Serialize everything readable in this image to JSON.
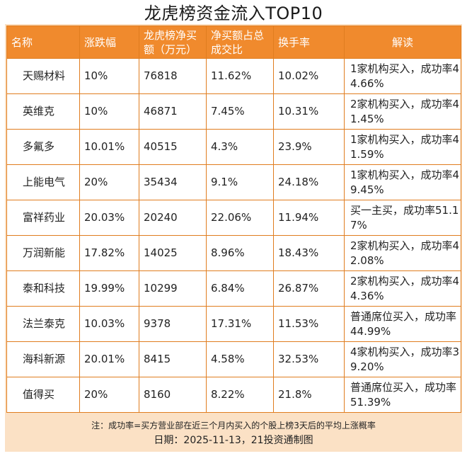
{
  "title": "龙虎榜资金流入TOP10",
  "columns": [
    "名称",
    "涨跌幅",
    "龙虎榜净买额（万元）",
    "净买额占总成交比",
    "换手率",
    "解读"
  ],
  "rows": [
    [
      "天赐材料",
      "10%",
      "76818",
      "11.62%",
      "10.02%",
      "1家机构买入，成功率44.66%"
    ],
    [
      "英维克",
      "10%",
      "46871",
      "7.45%",
      "10.31%",
      "2家机构买入，成功率41.45%"
    ],
    [
      "多氟多",
      "10.01%",
      "40515",
      "4.3%",
      "23.9%",
      "1家机构买入，成功率41.59%"
    ],
    [
      "上能电气",
      "20%",
      "35434",
      "9.1%",
      "24.18%",
      "1家机构买入，成功率49.45%"
    ],
    [
      "富祥药业",
      "20.03%",
      "20240",
      "22.06%",
      "11.94%",
      "买一主买，成功率51.17%"
    ],
    [
      "万润新能",
      "17.82%",
      "14025",
      "8.96%",
      "18.43%",
      "2家机构买入，成功率42.08%"
    ],
    [
      "泰和科技",
      "19.99%",
      "10299",
      "6.84%",
      "26.87%",
      "2家机构买入，成功率44.36%"
    ],
    [
      "法兰泰克",
      "10.03%",
      "9378",
      "17.31%",
      "11.53%",
      "普通席位买入，成功率44.99%"
    ],
    [
      "海科新源",
      "20.01%",
      "8415",
      "4.58%",
      "32.53%",
      "4家机构买入，成功率39.20%"
    ],
    [
      "值得买",
      "20%",
      "8160",
      "8.22%",
      "21.8%",
      "普通席位买入，成功率51.39%"
    ]
  ],
  "footnote": "注：成功率=买方营业部在近三个月内买入的个股上榜3天后的平均上涨概率",
  "date_line": "日期：2025-11-13，21投资通制图",
  "colors": {
    "header_bg": "#f08a2d",
    "border": "#e07d1f",
    "panel_bg": "#fbe1c5"
  }
}
